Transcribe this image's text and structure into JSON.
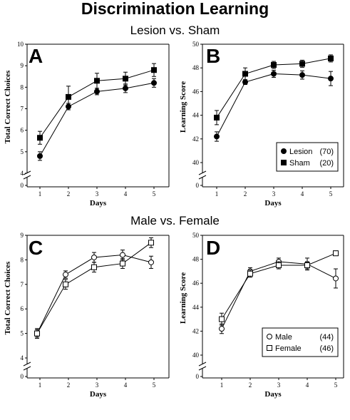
{
  "title": "Discrimination Learning",
  "section_titles": [
    "Lesion vs. Sham",
    "Male vs. Female"
  ],
  "colors": {
    "ink": "#000000",
    "open_fill": "#ffffff"
  },
  "chart_data": [
    {
      "panel": "A",
      "type": "line",
      "xlabel": "Days",
      "ylabel": "Total Correct Choices",
      "x": [
        1,
        2,
        3,
        4,
        5
      ],
      "ylim": [
        0,
        10
      ],
      "yticks": [
        0,
        4,
        5,
        6,
        7,
        8,
        9,
        10
      ],
      "xticks": [
        1,
        2,
        3,
        4,
        5
      ],
      "axis_break": true,
      "series": [
        {
          "marker": "filled-circle",
          "values": [
            4.8,
            7.1,
            7.8,
            7.95,
            8.2
          ],
          "err": [
            0.2,
            0.15,
            0.15,
            0.2,
            0.2
          ]
        },
        {
          "marker": "filled-square",
          "values": [
            5.65,
            7.55,
            8.3,
            8.4,
            8.8
          ],
          "err": [
            0.3,
            0.5,
            0.35,
            0.3,
            0.3
          ]
        }
      ]
    },
    {
      "panel": "B",
      "type": "line",
      "xlabel": "Days",
      "ylabel": "Learning Score",
      "x": [
        1,
        2,
        3,
        4,
        5
      ],
      "ylim": [
        0,
        50
      ],
      "yticks": [
        0,
        40,
        42,
        44,
        46,
        48,
        50
      ],
      "xticks": [
        1,
        2,
        3,
        4,
        5
      ],
      "axis_break": true,
      "legend_position": "bottom-right",
      "series": [
        {
          "name": "Lesion",
          "n": "(70)",
          "marker": "filled-circle",
          "values": [
            42.2,
            46.8,
            47.5,
            47.4,
            47.1
          ],
          "err": [
            0.4,
            0.2,
            0.3,
            0.35,
            0.6
          ]
        },
        {
          "name": "Sham",
          "n": "(20)",
          "marker": "filled-square",
          "values": [
            43.8,
            47.5,
            48.25,
            48.35,
            48.8
          ],
          "err": [
            0.6,
            0.5,
            0.3,
            0.3,
            0.3
          ]
        }
      ]
    },
    {
      "panel": "C",
      "type": "line",
      "xlabel": "Days",
      "ylabel": "Total Correct Choices",
      "x": [
        1,
        2,
        3,
        4,
        5
      ],
      "ylim": [
        0,
        9
      ],
      "yticks": [
        0,
        4,
        5,
        6,
        7,
        8,
        9
      ],
      "xticks": [
        1,
        2,
        3,
        4,
        5
      ],
      "axis_break": true,
      "series": [
        {
          "marker": "open-circle",
          "values": [
            5.0,
            7.4,
            8.1,
            8.2,
            7.9
          ],
          "err": [
            0.15,
            0.15,
            0.2,
            0.2,
            0.25
          ]
        },
        {
          "marker": "open-square",
          "values": [
            5.0,
            7.0,
            7.7,
            7.85,
            8.7
          ],
          "err": [
            0.2,
            0.2,
            0.2,
            0.2,
            0.2
          ]
        }
      ]
    },
    {
      "panel": "D",
      "type": "line",
      "xlabel": "Days",
      "ylabel": "Learning Score",
      "x": [
        1,
        2,
        3,
        4,
        5
      ],
      "ylim": [
        0,
        50
      ],
      "yticks": [
        0,
        40,
        42,
        44,
        46,
        48,
        50
      ],
      "xticks": [
        1,
        2,
        3,
        4,
        5
      ],
      "axis_break": true,
      "legend_position": "bottom-right",
      "series": [
        {
          "name": "Male",
          "n": "(44)",
          "marker": "open-circle",
          "values": [
            42.2,
            47.0,
            47.8,
            47.6,
            46.4
          ],
          "err": [
            0.4,
            0.3,
            0.3,
            0.5,
            0.8
          ]
        },
        {
          "name": "Female",
          "n": "(46)",
          "marker": "open-square",
          "values": [
            43.0,
            46.8,
            47.5,
            47.5,
            48.5
          ],
          "err": [
            0.5,
            0.3,
            0.3,
            0.3,
            0.2
          ]
        }
      ]
    }
  ]
}
